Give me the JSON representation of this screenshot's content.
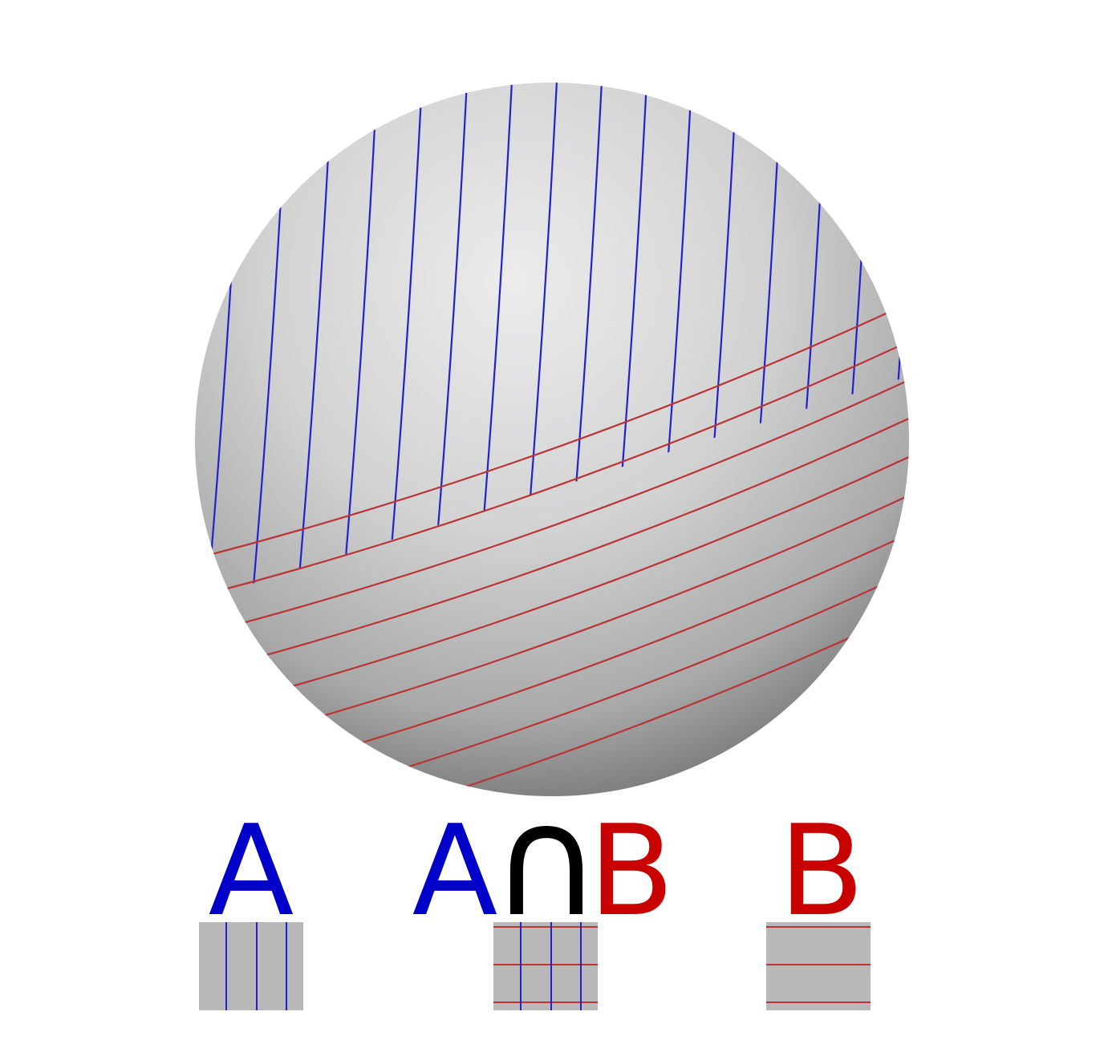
{
  "labels": {
    "a": "A",
    "intersection_a": "A",
    "intersection_sym": "∩",
    "intersection_b": "B",
    "b": "B"
  },
  "colors": {
    "a_lines": "#2222cc",
    "b_lines": "#bb3333",
    "label_a": "#0000c8",
    "label_b": "#c80000",
    "label_sym": "#000000",
    "swatch_fill": "#b8b8b8"
  }
}
